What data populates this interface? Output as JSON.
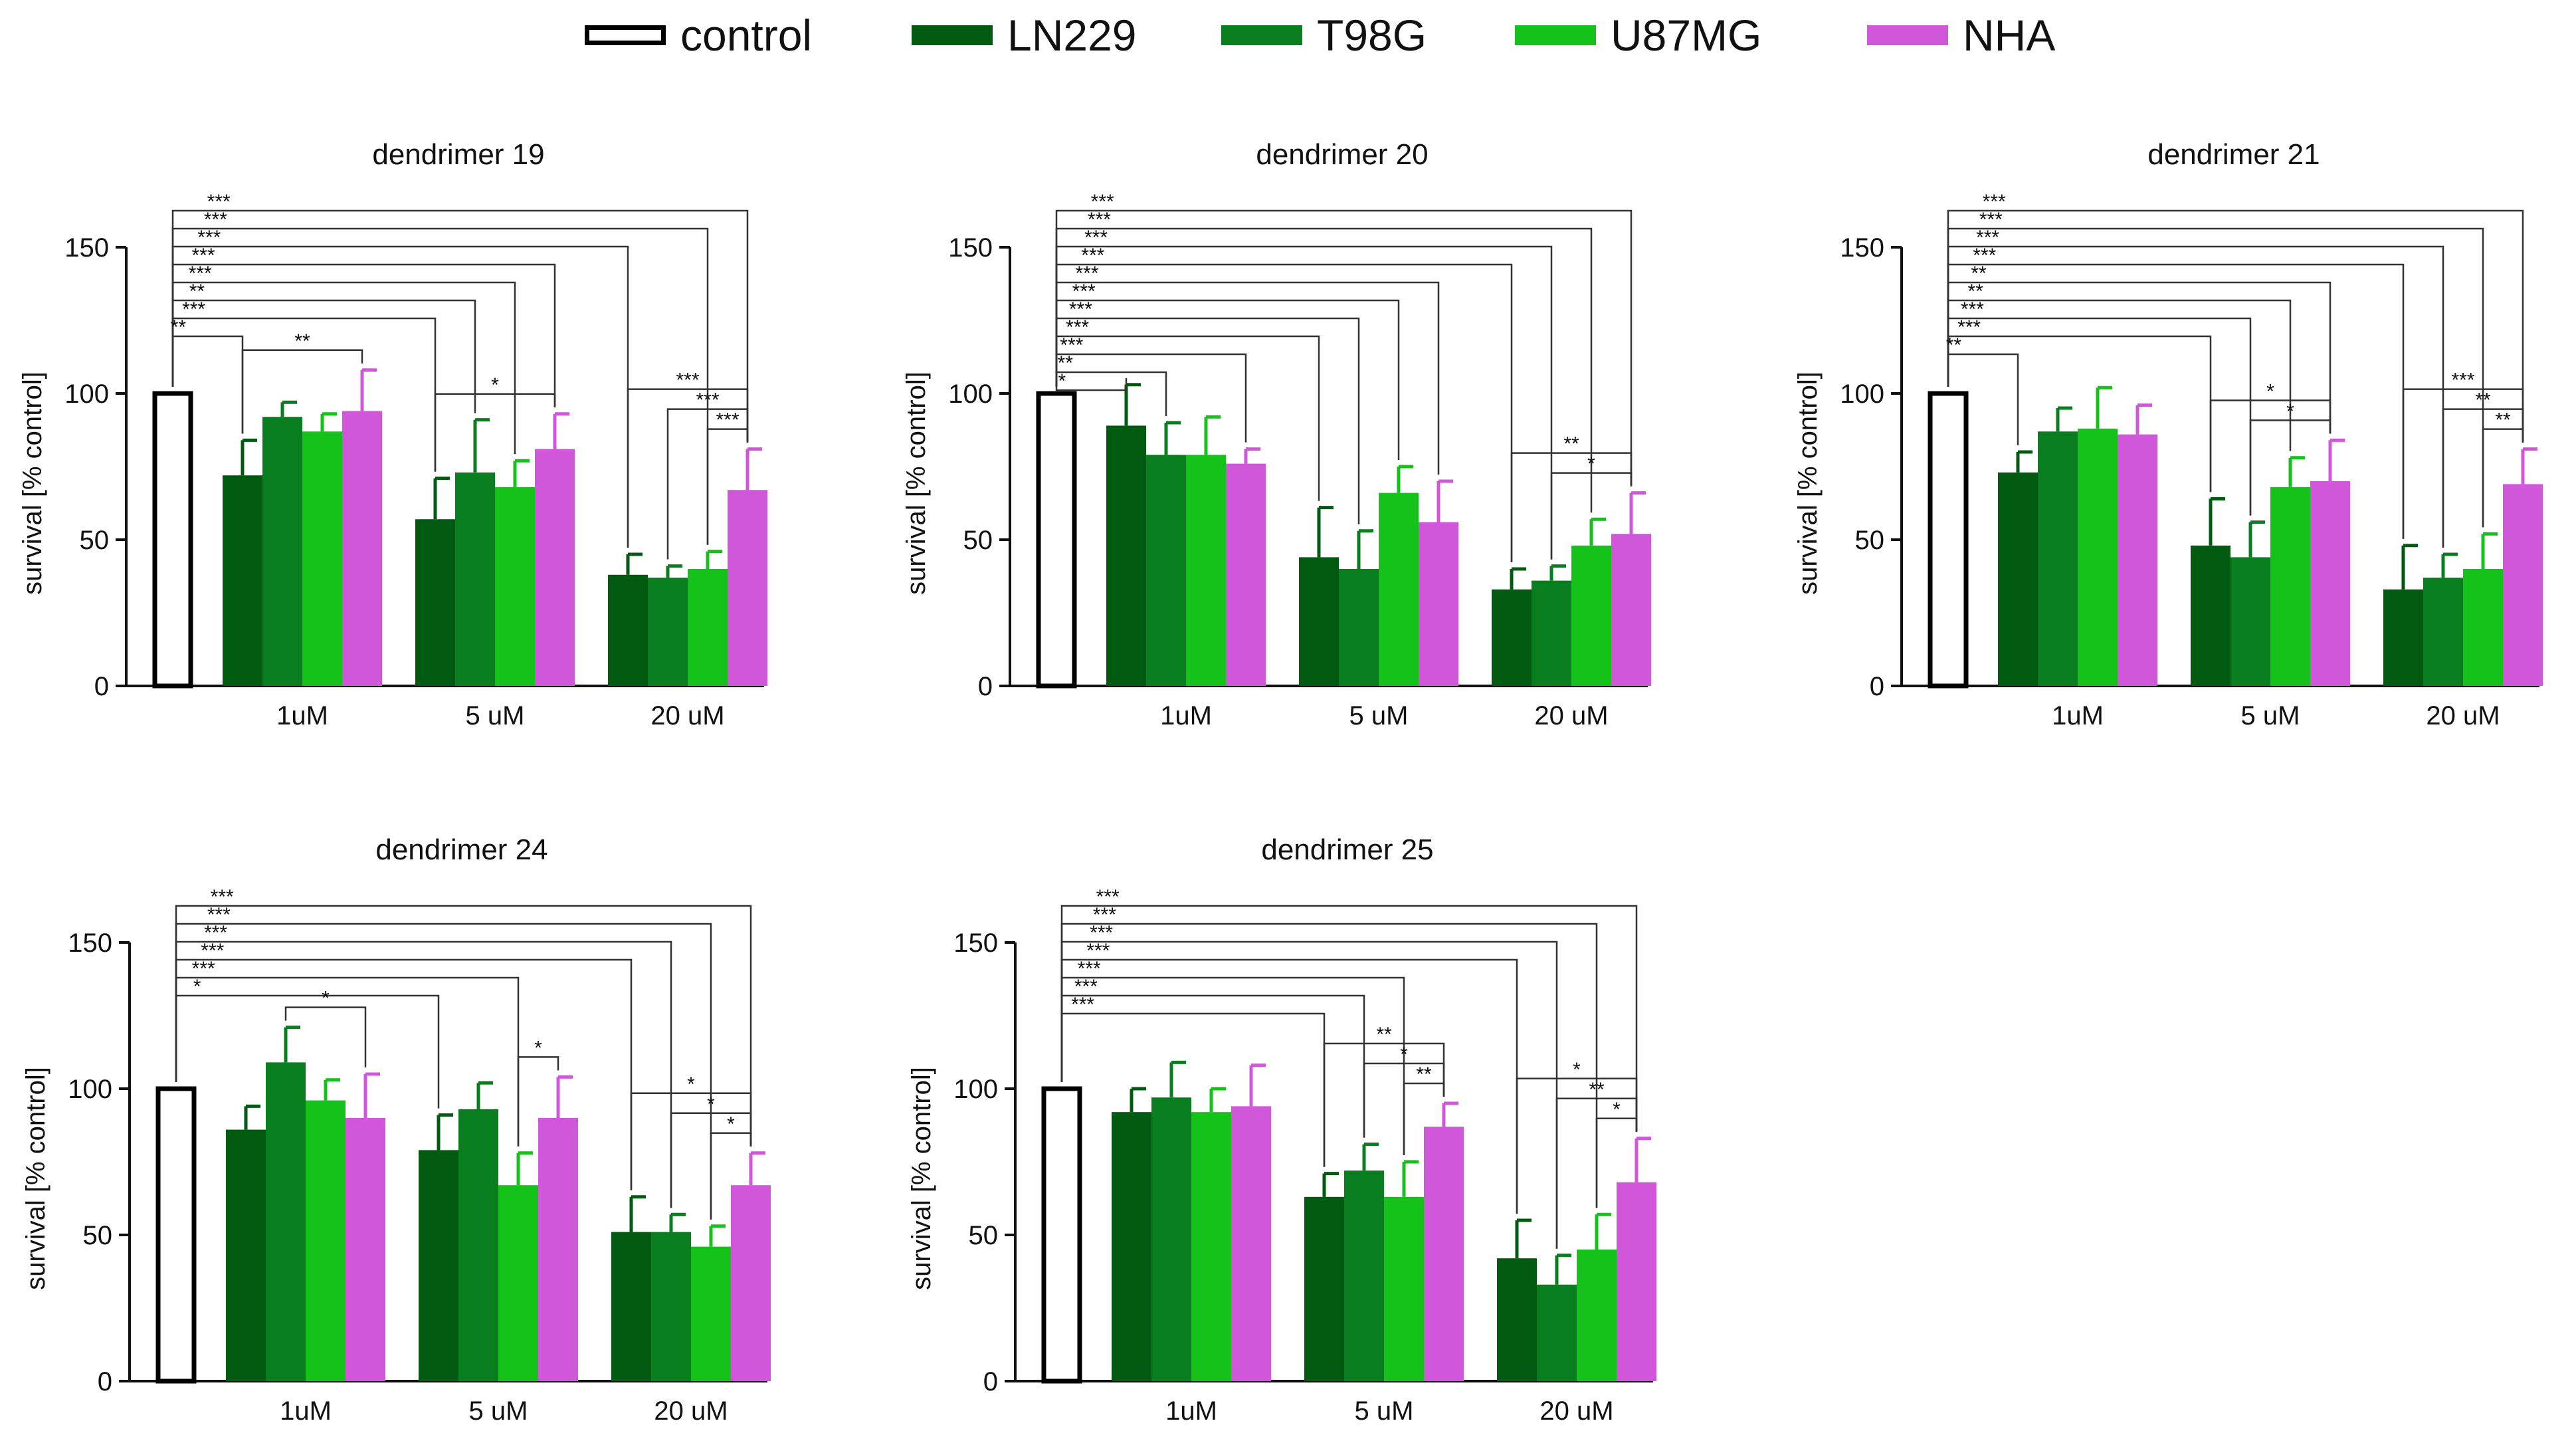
{
  "legend": {
    "items": [
      {
        "name": "control",
        "color": "#ffffff",
        "outline": "#000000"
      },
      {
        "name": "LN229",
        "color": "#005a0f"
      },
      {
        "name": "T98G",
        "color": "#087e1e"
      },
      {
        "name": "U87MG",
        "color": "#14c21a"
      },
      {
        "name": "NHA",
        "color": "#d157da"
      }
    ]
  },
  "chart_data": [
    {
      "type": "bar",
      "title": "dendrimer 19",
      "ylabel": "survival [% control]",
      "ylim": [
        0,
        150
      ],
      "yticks": [
        0,
        50,
        100,
        150
      ],
      "control": {
        "name": "control",
        "value": 100
      },
      "categories": [
        "1uM",
        "5 uM",
        "20 uM"
      ],
      "series": [
        {
          "name": "LN229",
          "values": [
            72,
            57,
            38
          ],
          "errors": [
            12,
            14,
            7
          ]
        },
        {
          "name": "T98G",
          "values": [
            92,
            73,
            37
          ],
          "errors": [
            5,
            18,
            4
          ]
        },
        {
          "name": "U87MG",
          "values": [
            87,
            68,
            40
          ],
          "errors": [
            6,
            9,
            6
          ]
        },
        {
          "name": "NHA",
          "values": [
            94,
            81,
            67
          ],
          "errors": [
            14,
            12,
            14
          ]
        }
      ],
      "brackets": [
        {
          "from": "control",
          "to": "LN229@1uM",
          "label": "**"
        },
        {
          "from": "LN229@1uM",
          "to": "NHA@1uM",
          "label": "**"
        },
        {
          "from": "control",
          "to": "LN229@5 uM",
          "label": "***"
        },
        {
          "from": "control",
          "to": "T98G@5 uM",
          "label": "**"
        },
        {
          "from": "control",
          "to": "U87MG@5 uM",
          "label": "***"
        },
        {
          "from": "control",
          "to": "NHA@5 uM",
          "label": "***"
        },
        {
          "from": "control",
          "to": "LN229@20 uM",
          "label": "***"
        },
        {
          "from": "control",
          "to": "U87MG@20 uM",
          "label": "***"
        },
        {
          "from": "control",
          "to": "NHA@20 uM",
          "label": "***"
        },
        {
          "from": "LN229@5 uM",
          "to": "NHA@5 uM",
          "label": "*"
        },
        {
          "from": "LN229@20 uM",
          "to": "NHA@20 uM",
          "label": "***"
        },
        {
          "from": "T98G@20 uM",
          "to": "NHA@20 uM",
          "label": "***"
        },
        {
          "from": "U87MG@20 uM",
          "to": "NHA@20 uM",
          "label": "***"
        }
      ]
    },
    {
      "type": "bar",
      "title": "dendrimer 20",
      "ylabel": "survival [% control]",
      "ylim": [
        0,
        150
      ],
      "yticks": [
        0,
        50,
        100,
        150
      ],
      "control": {
        "name": "control",
        "value": 100
      },
      "categories": [
        "1uM",
        "5 uM",
        "20 uM"
      ],
      "series": [
        {
          "name": "LN229",
          "values": [
            89,
            44,
            33
          ],
          "errors": [
            14,
            17,
            7
          ]
        },
        {
          "name": "T98G",
          "values": [
            79,
            40,
            36
          ],
          "errors": [
            11,
            13,
            5
          ]
        },
        {
          "name": "U87MG",
          "values": [
            79,
            66,
            48
          ],
          "errors": [
            13,
            9,
            9
          ]
        },
        {
          "name": "NHA",
          "values": [
            76,
            56,
            52
          ],
          "errors": [
            5,
            14,
            14
          ]
        }
      ],
      "brackets": [
        {
          "from": "control",
          "to": "LN229@1uM",
          "label": "*"
        },
        {
          "from": "control",
          "to": "T98G@1uM",
          "label": "**"
        },
        {
          "from": "control",
          "to": "NHA@1uM",
          "label": "***"
        },
        {
          "from": "control",
          "to": "LN229@5 uM",
          "label": "***"
        },
        {
          "from": "control",
          "to": "T98G@5 uM",
          "label": "***"
        },
        {
          "from": "control",
          "to": "U87MG@5 uM",
          "label": "***"
        },
        {
          "from": "control",
          "to": "NHA@5 uM",
          "label": "***"
        },
        {
          "from": "control",
          "to": "LN229@20 uM",
          "label": "***"
        },
        {
          "from": "control",
          "to": "T98G@20 uM",
          "label": "***"
        },
        {
          "from": "control",
          "to": "U87MG@20 uM",
          "label": "***"
        },
        {
          "from": "control",
          "to": "NHA@20 uM",
          "label": "***"
        },
        {
          "from": "LN229@20 uM",
          "to": "NHA@20 uM",
          "label": "**"
        },
        {
          "from": "T98G@20 uM",
          "to": "NHA@20 uM",
          "label": "*"
        }
      ]
    },
    {
      "type": "bar",
      "title": "dendrimer 21",
      "ylabel": "survival [% control]",
      "ylim": [
        0,
        150
      ],
      "yticks": [
        0,
        50,
        100,
        150
      ],
      "control": {
        "name": "control",
        "value": 100
      },
      "categories": [
        "1uM",
        "5 uM",
        "20 uM"
      ],
      "series": [
        {
          "name": "LN229",
          "values": [
            73,
            48,
            33
          ],
          "errors": [
            7,
            16,
            15
          ]
        },
        {
          "name": "T98G",
          "values": [
            87,
            44,
            37
          ],
          "errors": [
            8,
            12,
            8
          ]
        },
        {
          "name": "U87MG",
          "values": [
            88,
            68,
            40
          ],
          "errors": [
            14,
            10,
            12
          ]
        },
        {
          "name": "NHA",
          "values": [
            86,
            70,
            69
          ],
          "errors": [
            10,
            14,
            12
          ]
        }
      ],
      "brackets": [
        {
          "from": "control",
          "to": "LN229@1uM",
          "label": "**"
        },
        {
          "from": "control",
          "to": "LN229@5 uM",
          "label": "***"
        },
        {
          "from": "control",
          "to": "T98G@5 uM",
          "label": "***"
        },
        {
          "from": "control",
          "to": "U87MG@5 uM",
          "label": "**"
        },
        {
          "from": "control",
          "to": "NHA@5 uM",
          "label": "**"
        },
        {
          "from": "control",
          "to": "LN229@20 uM",
          "label": "***"
        },
        {
          "from": "control",
          "to": "T98G@20 uM",
          "label": "***"
        },
        {
          "from": "control",
          "to": "U87MG@20 uM",
          "label": "***"
        },
        {
          "from": "control",
          "to": "NHA@20 uM",
          "label": "***"
        },
        {
          "from": "LN229@5 uM",
          "to": "NHA@5 uM",
          "label": "*"
        },
        {
          "from": "T98G@5 uM",
          "to": "NHA@5 uM",
          "label": "*"
        },
        {
          "from": "LN229@20 uM",
          "to": "NHA@20 uM",
          "label": "***"
        },
        {
          "from": "T98G@20 uM",
          "to": "NHA@20 uM",
          "label": "**"
        },
        {
          "from": "U87MG@20 uM",
          "to": "NHA@20 uM",
          "label": "**"
        }
      ]
    },
    {
      "type": "bar",
      "title": "dendrimer 24",
      "ylabel": "survival [% control]",
      "ylim": [
        0,
        150
      ],
      "yticks": [
        0,
        50,
        100,
        150
      ],
      "control": {
        "name": "control",
        "value": 100
      },
      "categories": [
        "1uM",
        "5 uM",
        "20 uM"
      ],
      "series": [
        {
          "name": "LN229",
          "values": [
            86,
            79,
            51
          ],
          "errors": [
            8,
            12,
            12
          ]
        },
        {
          "name": "T98G",
          "values": [
            109,
            93,
            51
          ],
          "errors": [
            12,
            9,
            6
          ]
        },
        {
          "name": "U87MG",
          "values": [
            96,
            67,
            46
          ],
          "errors": [
            7,
            11,
            7
          ]
        },
        {
          "name": "NHA",
          "values": [
            90,
            90,
            67
          ],
          "errors": [
            15,
            14,
            11
          ]
        }
      ],
      "brackets": [
        {
          "from": "control",
          "to": "LN229@5 uM",
          "label": "*"
        },
        {
          "from": "T98G@1uM",
          "to": "NHA@1uM",
          "label": "*"
        },
        {
          "from": "control",
          "to": "U87MG@5 uM",
          "label": "***"
        },
        {
          "from": "control",
          "to": "LN229@20 uM",
          "label": "***"
        },
        {
          "from": "control",
          "to": "T98G@20 uM",
          "label": "***"
        },
        {
          "from": "control",
          "to": "U87MG@20 uM",
          "label": "***"
        },
        {
          "from": "control",
          "to": "NHA@20 uM",
          "label": "***"
        },
        {
          "from": "U87MG@5 uM",
          "to": "NHA@5 uM",
          "label": "*"
        },
        {
          "from": "LN229@20 uM",
          "to": "NHA@20 uM",
          "label": "*"
        },
        {
          "from": "T98G@20 uM",
          "to": "NHA@20 uM",
          "label": "*"
        },
        {
          "from": "U87MG@20 uM",
          "to": "NHA@20 uM",
          "label": "*"
        }
      ]
    },
    {
      "type": "bar",
      "title": "dendrimer 25",
      "ylabel": "survival [% control]",
      "ylim": [
        0,
        150
      ],
      "yticks": [
        0,
        50,
        100,
        150
      ],
      "control": {
        "name": "control",
        "value": 100
      },
      "categories": [
        "1uM",
        "5 uM",
        "20 uM"
      ],
      "series": [
        {
          "name": "LN229",
          "values": [
            92,
            63,
            42
          ],
          "errors": [
            8,
            8,
            13
          ]
        },
        {
          "name": "T98G",
          "values": [
            97,
            72,
            33
          ],
          "errors": [
            12,
            9,
            10
          ]
        },
        {
          "name": "U87MG",
          "values": [
            92,
            63,
            45
          ],
          "errors": [
            8,
            12,
            12
          ]
        },
        {
          "name": "NHA",
          "values": [
            94,
            87,
            68
          ],
          "errors": [
            14,
            8,
            15
          ]
        }
      ],
      "brackets": [
        {
          "from": "control",
          "to": "LN229@5 uM",
          "label": "***"
        },
        {
          "from": "control",
          "to": "T98G@5 uM",
          "label": "***"
        },
        {
          "from": "control",
          "to": "U87MG@5 uM",
          "label": "***"
        },
        {
          "from": "control",
          "to": "LN229@20 uM",
          "label": "***"
        },
        {
          "from": "control",
          "to": "T98G@20 uM",
          "label": "***"
        },
        {
          "from": "control",
          "to": "U87MG@20 uM",
          "label": "***"
        },
        {
          "from": "control",
          "to": "NHA@20 uM",
          "label": "***"
        },
        {
          "from": "LN229@5 uM",
          "to": "NHA@5 uM",
          "label": "**"
        },
        {
          "from": "T98G@5 uM",
          "to": "NHA@5 uM",
          "label": "*"
        },
        {
          "from": "U87MG@5 uM",
          "to": "NHA@5 uM",
          "label": "**"
        },
        {
          "from": "LN229@20 uM",
          "to": "NHA@20 uM",
          "label": "*"
        },
        {
          "from": "T98G@20 uM",
          "to": "NHA@20 uM",
          "label": "**"
        },
        {
          "from": "U87MG@20 uM",
          "to": "NHA@20 uM",
          "label": "*"
        }
      ]
    }
  ]
}
